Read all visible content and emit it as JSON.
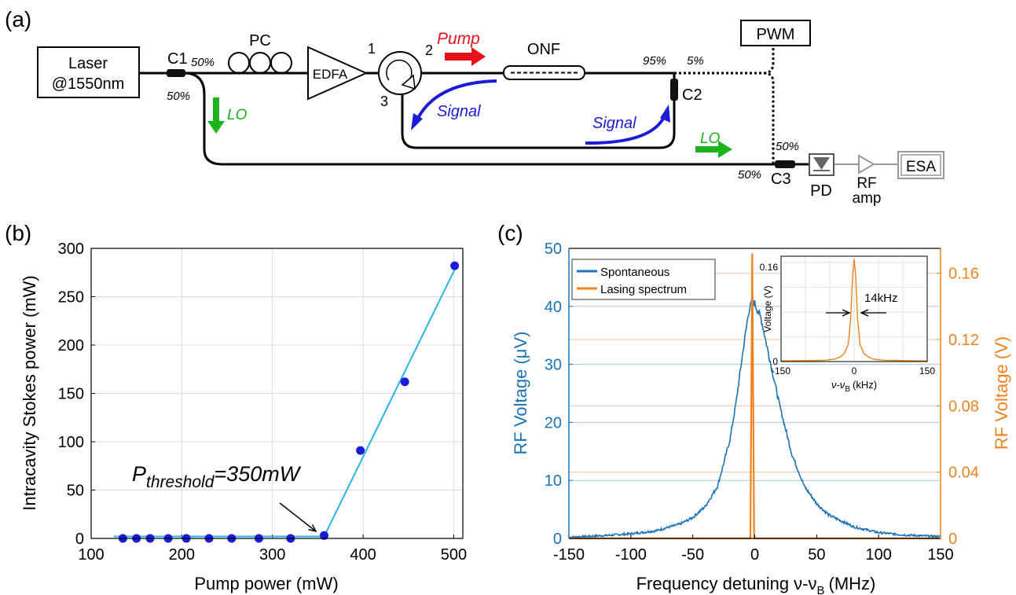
{
  "colors": {
    "pump": "#e8121b",
    "signal": "#1b1bd9",
    "lo": "#1db31d",
    "blue_axis": "#1a73b8",
    "orange": "#f0821e",
    "fit_line": "#2ab3e6",
    "points": "#1b1bd9",
    "grid": "#dcdcdc"
  },
  "panel_a": {
    "label": "(a)",
    "laser_line1": "Laser",
    "laser_line2": "@1550nm",
    "c1": "C1",
    "c1_split_top": "50%",
    "c1_split_bottom": "50%",
    "pc": "PC",
    "edfa": "EDFA",
    "port1": "1",
    "port2": "2",
    "port3": "3",
    "pump": "Pump",
    "onf": "ONF",
    "c2_split_left": "95%",
    "c2_split_right": "5%",
    "c2": "C2",
    "pwm": "PWM",
    "signal_left": "Signal",
    "signal_right": "Signal",
    "lo_left": "LO",
    "lo_right": "LO",
    "c3_split_top": "50%",
    "c3_split_left": "50%",
    "c3": "C3",
    "pd": "PD",
    "rf_line1": "RF",
    "rf_line2": "amp",
    "esa": "ESA"
  },
  "panel_b": {
    "label": "(b)",
    "annotation_sym": "P",
    "annotation_sub": "threshold",
    "annotation_rest": "=350mW",
    "chart_data": {
      "type": "scatter",
      "xlabel": "Pump power (mW)",
      "ylabel": "Intracavity Stokes power (mW)",
      "xlim": [
        100,
        510
      ],
      "ylim": [
        0,
        300
      ],
      "xticks": [
        100,
        200,
        300,
        400,
        500
      ],
      "yticks": [
        0,
        50,
        100,
        150,
        200,
        250,
        300
      ],
      "grid": true,
      "points": {
        "x": [
          135,
          150,
          165,
          185,
          205,
          230,
          255,
          285,
          320,
          357,
          397,
          446,
          501
        ],
        "y": [
          0,
          0,
          0,
          0,
          0,
          0,
          0,
          0,
          0,
          3,
          91,
          162,
          282
        ]
      },
      "fit": {
        "x": [
          125,
          357,
          502
        ],
        "y": [
          2,
          2,
          280
        ]
      }
    }
  },
  "panel_c": {
    "label": "(c)",
    "legend_spont": "Spontaneous",
    "legend_lasing": "Lasing spectrum",
    "inset_peak": "0.16",
    "inset_zero": "0",
    "inset_x_left": "-150",
    "inset_x_mid": "0",
    "inset_x_right": "150",
    "inset_ylabel": "Voltage (V)",
    "inset_xlabel_nu": "ν-ν",
    "inset_xlabel_sub": "B",
    "inset_xlabel_unit": "(kHz)",
    "inset_fwhm": "14kHz",
    "xlabel_main": "Frequency detuning ν-ν",
    "xlabel_sub": "B",
    "xlabel_unit": "(MHz)",
    "chart_data": {
      "type": "line",
      "xlabel": "Frequency detuning ν-νB (MHz)",
      "ylabel_left": "RF Voltage (μV)",
      "ylabel_right": "RF Voltage (V)",
      "xlim": [
        -150,
        150
      ],
      "ylim_left": [
        0,
        50
      ],
      "ylim_right": [
        0,
        0.175
      ],
      "xticks": [
        -150,
        -100,
        -50,
        0,
        50,
        100,
        150
      ],
      "yticks_left": [
        0,
        10,
        20,
        30,
        40,
        50
      ],
      "yticks_right": [
        "0",
        "0.04",
        "0.08",
        "0.12",
        "0.16"
      ],
      "series": [
        {
          "name": "Spontaneous",
          "axis": "left",
          "x": [
            -150,
            -120,
            -100,
            -80,
            -60,
            -50,
            -40,
            -30,
            -20,
            -15,
            -10,
            -5,
            -2,
            0,
            5,
            10,
            15,
            20,
            30,
            40,
            50,
            60,
            80,
            100,
            120,
            150
          ],
          "y": [
            0.2,
            0.5,
            0.8,
            1.3,
            2.5,
            3.6,
            5.5,
            9.0,
            17.0,
            23.5,
            31.5,
            39.0,
            41.0,
            40.5,
            38.0,
            33.0,
            28.0,
            23.0,
            14.5,
            9.0,
            6.0,
            4.0,
            2.0,
            1.0,
            0.6,
            0.3
          ]
        },
        {
          "name": "Lasing spectrum",
          "axis": "right",
          "x": [
            -150,
            -3.5,
            -2,
            -0.5,
            150
          ],
          "y": [
            0,
            0,
            0.172,
            0,
            0
          ]
        }
      ],
      "inset": {
        "xlim": [
          -150,
          150
        ],
        "ylim": [
          0,
          0.17
        ],
        "x": [
          -150,
          -60,
          -40,
          -30,
          -20,
          -12,
          -7,
          -3,
          0,
          3,
          7,
          12,
          20,
          30,
          40,
          60,
          150
        ],
        "y": [
          0.001,
          0.002,
          0.004,
          0.007,
          0.013,
          0.028,
          0.07,
          0.14,
          0.166,
          0.14,
          0.07,
          0.028,
          0.013,
          0.007,
          0.004,
          0.002,
          0.001
        ]
      }
    }
  }
}
